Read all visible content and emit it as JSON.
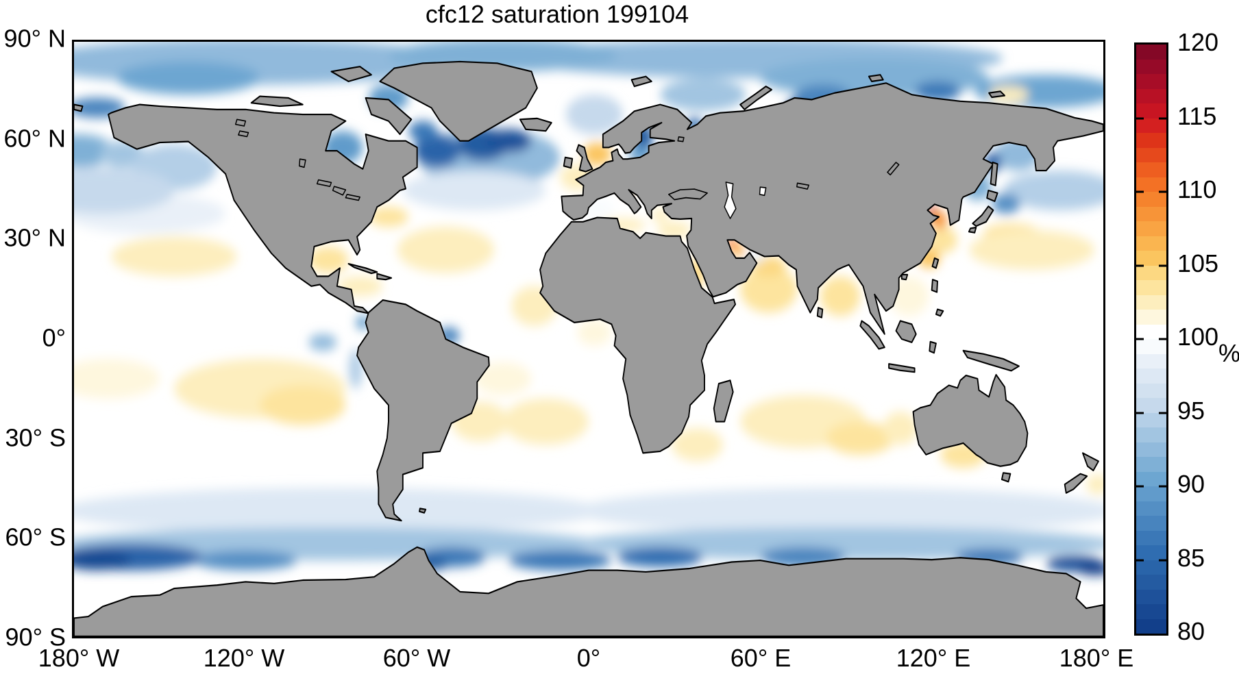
{
  "title": "cfc12 saturation 199104",
  "axes": {
    "lat_ticks": [
      {
        "label": "90° N",
        "lat": 90
      },
      {
        "label": "60° N",
        "lat": 60
      },
      {
        "label": "30° N",
        "lat": 30
      },
      {
        "label": "0°",
        "lat": 0
      },
      {
        "label": "30° S",
        "lat": -30
      },
      {
        "label": "60° S",
        "lat": -60
      },
      {
        "label": "90° S",
        "lat": -90
      }
    ],
    "lon_ticks": [
      {
        "label": "180° W",
        "lon": -180
      },
      {
        "label": "120° W",
        "lon": -120
      },
      {
        "label": "60° W",
        "lon": -60
      },
      {
        "label": "0°",
        "lon": 0
      },
      {
        "label": "60° E",
        "lon": 60
      },
      {
        "label": "120° E",
        "lon": 120
      },
      {
        "label": "180° E",
        "lon": 180
      }
    ]
  },
  "colorbar": {
    "unit_label": "%",
    "min": 80,
    "max": 120,
    "tick_values": [
      120,
      115,
      110,
      105,
      100,
      95,
      90,
      85,
      80
    ],
    "tick_labels": [
      "120",
      "115",
      "110",
      "105",
      "100",
      "95",
      "90",
      "85",
      "80"
    ],
    "border_color": "#000000",
    "segment_colors": [
      "#123F8A",
      "#184892",
      "#1E519A",
      "#245BA1",
      "#2964A9",
      "#2F6DB1",
      "#3B78B7",
      "#4884BE",
      "#548FC4",
      "#619BCB",
      "#6DA6D1",
      "#7FB0D6",
      "#91BADC",
      "#A2C5E1",
      "#B4CFE7",
      "#C6D9EC",
      "#D2E1F0",
      "#DDE8F4",
      "#E9F0F8",
      "#F8FBFD",
      "#FFFFFF",
      "#FEF7DE",
      "#FDEEBE",
      "#FDE49E",
      "#FCD882",
      "#FBC55F",
      "#FAB550",
      "#F9A443",
      "#F79438",
      "#F5832D",
      "#F37125",
      "#EE5E20",
      "#E6491C",
      "#DE3419",
      "#D42020",
      "#C81522",
      "#B81125",
      "#A70D27",
      "#960A28",
      "#840826"
    ]
  },
  "map": {
    "land_color": "#9b9b9b",
    "coastline_color": "#000000",
    "ocean_base_color": "#ffffff"
  },
  "chart_data": {
    "type": "heatmap",
    "title": "cfc12 saturation 199104",
    "units": "%",
    "projection": "equirectangular",
    "lon_range": [
      -180,
      180
    ],
    "lat_range": [
      -90,
      90
    ],
    "colorbar_range": [
      80,
      120
    ],
    "colorbar_ticks": [
      80,
      85,
      90,
      95,
      100,
      105,
      110,
      115,
      120
    ],
    "legend_position": "right",
    "field_features": [
      {
        "region": "arctic-west-band",
        "lon": -120,
        "lat": 84,
        "rx_deg": 75,
        "ry_deg": 7,
        "value_pct": 92
      },
      {
        "region": "arctic-east-band",
        "lon": 60,
        "lat": 85,
        "rx_deg": 85,
        "ry_deg": 6,
        "value_pct": 92
      },
      {
        "region": "arctic-central",
        "lon": -30,
        "lat": 86,
        "rx_deg": 40,
        "ry_deg": 5,
        "value_pct": 91
      },
      {
        "region": "beaufort-sea",
        "lon": -140,
        "lat": 79,
        "rx_deg": 25,
        "ry_deg": 5,
        "value_pct": 90
      },
      {
        "region": "kara-laptev",
        "lon": 100,
        "lat": 79,
        "rx_deg": 40,
        "ry_deg": 6,
        "value_pct": 91
      },
      {
        "region": "east-siberian-sea",
        "lon": 160,
        "lat": 75,
        "rx_deg": 25,
        "ry_deg": 5,
        "value_pct": 90
      },
      {
        "region": "chukchi-dark",
        "lon": -172,
        "lat": 70,
        "rx_deg": 10,
        "ry_deg": 3,
        "value_pct": 87
      },
      {
        "region": "laptev-dark",
        "lon": 122,
        "lat": 75,
        "rx_deg": 8,
        "ry_deg": 3,
        "value_pct": 86
      },
      {
        "region": "kara-dark",
        "lon": 82,
        "lat": 73,
        "rx_deg": 10,
        "ry_deg": 4,
        "value_pct": 87
      },
      {
        "region": "ob-gulf-dark",
        "lon": 72,
        "lat": 70,
        "rx_deg": 3,
        "ry_deg": 2.5,
        "value_pct": 83
      },
      {
        "region": "new-siberian-yellow",
        "lon": 147,
        "lat": 74,
        "rx_deg": 7,
        "ry_deg": 2.5,
        "value_pct": 102
      },
      {
        "region": "norwegian-sea",
        "lon": 2,
        "lat": 68,
        "rx_deg": 10,
        "ry_deg": 6,
        "value_pct": 95
      },
      {
        "region": "barents-sea",
        "lon": 40,
        "lat": 74,
        "rx_deg": 15,
        "ry_deg": 5,
        "value_pct": 93
      },
      {
        "region": "white-sea-dark",
        "lon": 37,
        "lat": 65,
        "rx_deg": 3,
        "ry_deg": 2,
        "value_pct": 85
      },
      {
        "region": "natl-subpolar",
        "lon": -35,
        "lat": 55,
        "rx_deg": 25,
        "ry_deg": 9,
        "value_pct": 92
      },
      {
        "region": "natl-midlat-pale",
        "lon": -40,
        "lat": 45,
        "rx_deg": 25,
        "ry_deg": 6,
        "value_pct": 97
      },
      {
        "region": "npac-midlat-pale",
        "lon": -155,
        "lat": 38,
        "rx_deg": 28,
        "ry_deg": 6,
        "value_pct": 98
      },
      {
        "region": "labrador-dark",
        "lon": -53,
        "lat": 57,
        "rx_deg": 8,
        "ry_deg": 5,
        "value_pct": 84
      },
      {
        "region": "irminger-dark",
        "lon": -37,
        "lat": 59,
        "rx_deg": 9,
        "ry_deg": 5,
        "value_pct": 83
      },
      {
        "region": "south-of-iceland-core",
        "lon": -28,
        "lat": 60,
        "rx_deg": 8,
        "ry_deg": 3.5,
        "value_pct": 82
      },
      {
        "region": "davis-strait-dark",
        "lon": -58,
        "lat": 63,
        "rx_deg": 5,
        "ry_deg": 3,
        "value_pct": 86
      },
      {
        "region": "baffin-bay",
        "lon": -70,
        "lat": 73,
        "rx_deg": 7,
        "ry_deg": 4,
        "value_pct": 89
      },
      {
        "region": "hudson-bay",
        "lon": -86,
        "lat": 58,
        "rx_deg": 7,
        "ry_deg": 5,
        "value_pct": 89
      },
      {
        "region": "north-sea-yellow",
        "lon": 3,
        "lat": 56,
        "rx_deg": 5,
        "ry_deg": 3.5,
        "value_pct": 105
      },
      {
        "region": "biscay-channel-yellow",
        "lon": -4,
        "lat": 49,
        "rx_deg": 6,
        "ry_deg": 4,
        "value_pct": 102
      },
      {
        "region": "baltic-bothnia-dark",
        "lon": 19,
        "lat": 61,
        "rx_deg": 3.5,
        "ry_deg": 4,
        "value_pct": 83
      },
      {
        "region": "baltic-south",
        "lon": 18,
        "lat": 56,
        "rx_deg": 4,
        "ry_deg": 2.5,
        "value_pct": 89
      },
      {
        "region": "gulf-stream-yellow",
        "lon": -70,
        "lat": 37,
        "rx_deg": 7,
        "ry_deg": 3,
        "value_pct": 103
      },
      {
        "region": "sargasso-yellow",
        "lon": -50,
        "lat": 27,
        "rx_deg": 17,
        "ry_deg": 7,
        "value_pct": 102
      },
      {
        "region": "gulf-of-mexico-yellow",
        "lon": -91,
        "lat": 24,
        "rx_deg": 7,
        "ry_deg": 4,
        "value_pct": 103
      },
      {
        "region": "caribbean-yellow",
        "lon": -80,
        "lat": 16,
        "rx_deg": 8,
        "ry_deg": 3,
        "value_pct": 102
      },
      {
        "region": "west-africa-yellow",
        "lon": -19,
        "lat": 10,
        "rx_deg": 8,
        "ry_deg": 6,
        "value_pct": 102
      },
      {
        "region": "gulf-of-guinea-pale",
        "lon": 2,
        "lat": 2,
        "rx_deg": 6,
        "ry_deg": 4,
        "value_pct": 101
      },
      {
        "region": "amazon-mouth-dark",
        "lon": -49,
        "lat": 1,
        "rx_deg": 4,
        "ry_deg": 2.5,
        "value_pct": 87
      },
      {
        "region": "panama-bight-dark",
        "lon": -79,
        "lat": 5,
        "rx_deg": 2.5,
        "ry_deg": 2,
        "value_pct": 89
      },
      {
        "region": "bering-sea",
        "lon": -178,
        "lat": 57,
        "rx_deg": 12,
        "ry_deg": 5,
        "value_pct": 91
      },
      {
        "region": "bering-east",
        "lon": -163,
        "lat": 56,
        "rx_deg": 8,
        "ry_deg": 4,
        "value_pct": 93
      },
      {
        "region": "gulf-of-alaska",
        "lon": -145,
        "lat": 52,
        "rx_deg": 15,
        "ry_deg": 7,
        "value_pct": 94
      },
      {
        "region": "npac-band",
        "lon": -170,
        "lat": 45,
        "rx_deg": 25,
        "ry_deg": 7,
        "value_pct": 95
      },
      {
        "region": "npac-west-band",
        "lon": 165,
        "lat": 45,
        "rx_deg": 20,
        "ry_deg": 6,
        "value_pct": 94
      },
      {
        "region": "okhotsk",
        "lon": 150,
        "lat": 56,
        "rx_deg": 8,
        "ry_deg": 5,
        "value_pct": 92
      },
      {
        "region": "okhotsk-amur-dark",
        "lon": 141.5,
        "lat": 53.5,
        "rx_deg": 3,
        "ry_deg": 3,
        "value_pct": 84
      },
      {
        "region": "japan-sea-north",
        "lon": 136,
        "lat": 46,
        "rx_deg": 5,
        "ry_deg": 4,
        "value_pct": 91
      },
      {
        "region": "oyashio-dark",
        "lon": 146,
        "lat": 41,
        "rx_deg": 5,
        "ry_deg": 3,
        "value_pct": 88
      },
      {
        "region": "kuroshio-yellow",
        "lon": 148,
        "lat": 32,
        "rx_deg": 10,
        "ry_deg": 3,
        "value_pct": 103
      },
      {
        "region": "wpac-subtrop-yellow",
        "lon": 155,
        "lat": 27,
        "rx_deg": 22,
        "ry_deg": 6,
        "value_pct": 102
      },
      {
        "region": "epac-subtrop-yellow",
        "lon": -145,
        "lat": 25,
        "rx_deg": 22,
        "ry_deg": 6,
        "value_pct": 102
      },
      {
        "region": "east-china-yellow",
        "lon": 124,
        "lat": 30,
        "rx_deg": 5,
        "ry_deg": 4,
        "value_pct": 103
      },
      {
        "region": "taiwan-strait-orange",
        "lon": 119,
        "lat": 24.5,
        "rx_deg": 4,
        "ry_deg": 3,
        "value_pct": 105
      },
      {
        "region": "yellow-sea-orange",
        "lon": 122.5,
        "lat": 36,
        "rx_deg": 3,
        "ry_deg": 2.7,
        "value_pct": 108
      },
      {
        "region": "bohai-red-spot",
        "lon": 120,
        "lat": 38.8,
        "rx_deg": 1.8,
        "ry_deg": 1.4,
        "value_pct": 115
      },
      {
        "region": "south-china-pale",
        "lon": 112,
        "lat": 13,
        "rx_deg": 7,
        "ry_deg": 6,
        "value_pct": 101
      },
      {
        "region": "arabian-sea-yellow",
        "lon": 63,
        "lat": 15,
        "rx_deg": 10,
        "ry_deg": 7,
        "value_pct": 103
      },
      {
        "region": "north-arabian-yellow",
        "lon": 63,
        "lat": 22,
        "rx_deg": 6,
        "ry_deg": 3,
        "value_pct": 104
      },
      {
        "region": "hormuz-pale-blue",
        "lon": 58.5,
        "lat": 25,
        "rx_deg": 3,
        "ry_deg": 2,
        "value_pct": 98
      },
      {
        "region": "persian-gulf-mid",
        "lon": 52.5,
        "lat": 26.8,
        "rx_deg": 2.6,
        "ry_deg": 1.6,
        "value_pct": 106
      },
      {
        "region": "persian-gulf-head-orange",
        "lon": 50,
        "lat": 28.8,
        "rx_deg": 2.2,
        "ry_deg": 1.5,
        "value_pct": 110
      },
      {
        "region": "red-sea",
        "lon": 38,
        "lat": 20,
        "rx_deg": 2.5,
        "ry_deg": 5,
        "value_pct": 104
      },
      {
        "region": "bay-of-bengal-yellow",
        "lon": 88,
        "lat": 13,
        "rx_deg": 7,
        "ry_deg": 6,
        "value_pct": 103
      },
      {
        "region": "west-med-pale",
        "lon": 3,
        "lat": 39.5,
        "rx_deg": 6,
        "ry_deg": 2.5,
        "value_pct": 99
      },
      {
        "region": "adriatic-orange",
        "lon": 13.5,
        "lat": 44.8,
        "rx_deg": 1.6,
        "ry_deg": 1.4,
        "value_pct": 107
      },
      {
        "region": "aegean-yellow",
        "lon": 25,
        "lat": 37.5,
        "rx_deg": 3,
        "ry_deg": 2,
        "value_pct": 102
      },
      {
        "region": "east-med-yellow",
        "lon": 30,
        "lat": 33,
        "rx_deg": 6,
        "ry_deg": 2.5,
        "value_pct": 102
      },
      {
        "region": "med-africa-yellow",
        "lon": 12,
        "lat": 34.5,
        "rx_deg": 8,
        "ry_deg": 2,
        "value_pct": 102
      },
      {
        "region": "spac-west-pale-yellow",
        "lon": -168,
        "lat": -12,
        "rx_deg": 18,
        "ry_deg": 6,
        "value_pct": 101
      },
      {
        "region": "spac-yellow",
        "lon": -115,
        "lat": -15,
        "rx_deg": 30,
        "ry_deg": 9,
        "value_pct": 102
      },
      {
        "region": "spac-yellow-core",
        "lon": -100,
        "lat": -20,
        "rx_deg": 15,
        "ry_deg": 6,
        "value_pct": 103
      },
      {
        "region": "galapagos-blue",
        "lon": -93,
        "lat": -1,
        "rx_deg": 5,
        "ry_deg": 2.5,
        "value_pct": 92
      },
      {
        "region": "peru-coast-blue",
        "lon": -81.5,
        "lat": -9,
        "rx_deg": 2.5,
        "ry_deg": 6,
        "value_pct": 94
      },
      {
        "region": "brazil-south-yellow",
        "lon": -38,
        "lat": -25,
        "rx_deg": 10,
        "ry_deg": 6,
        "value_pct": 102
      },
      {
        "region": "satl-yellow",
        "lon": -15,
        "lat": -25,
        "rx_deg": 15,
        "ry_deg": 7,
        "value_pct": 102
      },
      {
        "region": "satl-north-pale",
        "lon": -30,
        "lat": -12,
        "rx_deg": 10,
        "ry_deg": 5,
        "value_pct": 101
      },
      {
        "region": "agulhas-yellow",
        "lon": 38,
        "lat": -32,
        "rx_deg": 9,
        "ry_deg": 5,
        "value_pct": 102
      },
      {
        "region": "sind-yellow",
        "lon": 75,
        "lat": -25,
        "rx_deg": 22,
        "ry_deg": 8,
        "value_pct": 102
      },
      {
        "region": "sind-yellow-core",
        "lon": 95,
        "lat": -30,
        "rx_deg": 12,
        "ry_deg": 5,
        "value_pct": 103
      },
      {
        "region": "australian-bight-yellow",
        "lon": 131,
        "lat": -35,
        "rx_deg": 8,
        "ry_deg": 4,
        "value_pct": 103
      },
      {
        "region": "west-australia-yellow",
        "lon": 109,
        "lat": -27,
        "rx_deg": 6,
        "ry_deg": 5,
        "value_pct": 102
      },
      {
        "region": "tasman-pale",
        "lon": 160,
        "lat": -36,
        "rx_deg": 8,
        "ry_deg": 6,
        "value_pct": 100
      },
      {
        "region": "nz-east-yellow",
        "lon": 178,
        "lat": -44,
        "rx_deg": 4,
        "ry_deg": 3,
        "value_pct": 102
      },
      {
        "region": "circumpolar-pale-west",
        "lon": -90,
        "lat": -52,
        "rx_deg": 95,
        "ry_deg": 7,
        "value_pct": 97
      },
      {
        "region": "circumpolar-pale-east",
        "lon": 90,
        "lat": -52,
        "rx_deg": 95,
        "ry_deg": 7,
        "value_pct": 97
      },
      {
        "region": "circumpolar-blue-west",
        "lon": -90,
        "lat": -62,
        "rx_deg": 95,
        "ry_deg": 5,
        "value_pct": 93
      },
      {
        "region": "circumpolar-blue-east",
        "lon": 90,
        "lat": -62,
        "rx_deg": 95,
        "ry_deg": 5,
        "value_pct": 93
      },
      {
        "region": "amundsen-blue",
        "lon": -120,
        "lat": -67,
        "rx_deg": 18,
        "ry_deg": 3,
        "value_pct": 88
      },
      {
        "region": "ross-east-dark",
        "lon": -160,
        "lat": -66,
        "rx_deg": 25,
        "ry_deg": 4,
        "value_pct": 84
      },
      {
        "region": "ross-east-core",
        "lon": -172,
        "lat": -67,
        "rx_deg": 12,
        "ry_deg": 3,
        "value_pct": 81
      },
      {
        "region": "weddell-dark",
        "lon": -48,
        "lat": -66,
        "rx_deg": 12,
        "ry_deg": 3,
        "value_pct": 86
      },
      {
        "region": "weddell-core",
        "lon": -55,
        "lat": -68,
        "rx_deg": 6,
        "ry_deg": 2,
        "value_pct": 83
      },
      {
        "region": "atl-antarctic-dark",
        "lon": -10,
        "lat": -67,
        "rx_deg": 18,
        "ry_deg": 3,
        "value_pct": 86
      },
      {
        "region": "ind-antarctic-dark",
        "lon": 25,
        "lat": -66,
        "rx_deg": 15,
        "ry_deg": 3,
        "value_pct": 85
      },
      {
        "region": "ind-antarctic-dark2",
        "lon": 75,
        "lat": -66,
        "rx_deg": 15,
        "ry_deg": 3,
        "value_pct": 87
      },
      {
        "region": "east-antarctic-dark",
        "lon": 140,
        "lat": -66,
        "rx_deg": 12,
        "ry_deg": 2.5,
        "value_pct": 86
      },
      {
        "region": "ross-west-dark",
        "lon": 170,
        "lat": -68,
        "rx_deg": 10,
        "ry_deg": 2.5,
        "value_pct": 82
      },
      {
        "region": "ross-west-core",
        "lon": 177,
        "lat": -69.5,
        "rx_deg": 6,
        "ry_deg": 2,
        "value_pct": 80
      }
    ]
  }
}
